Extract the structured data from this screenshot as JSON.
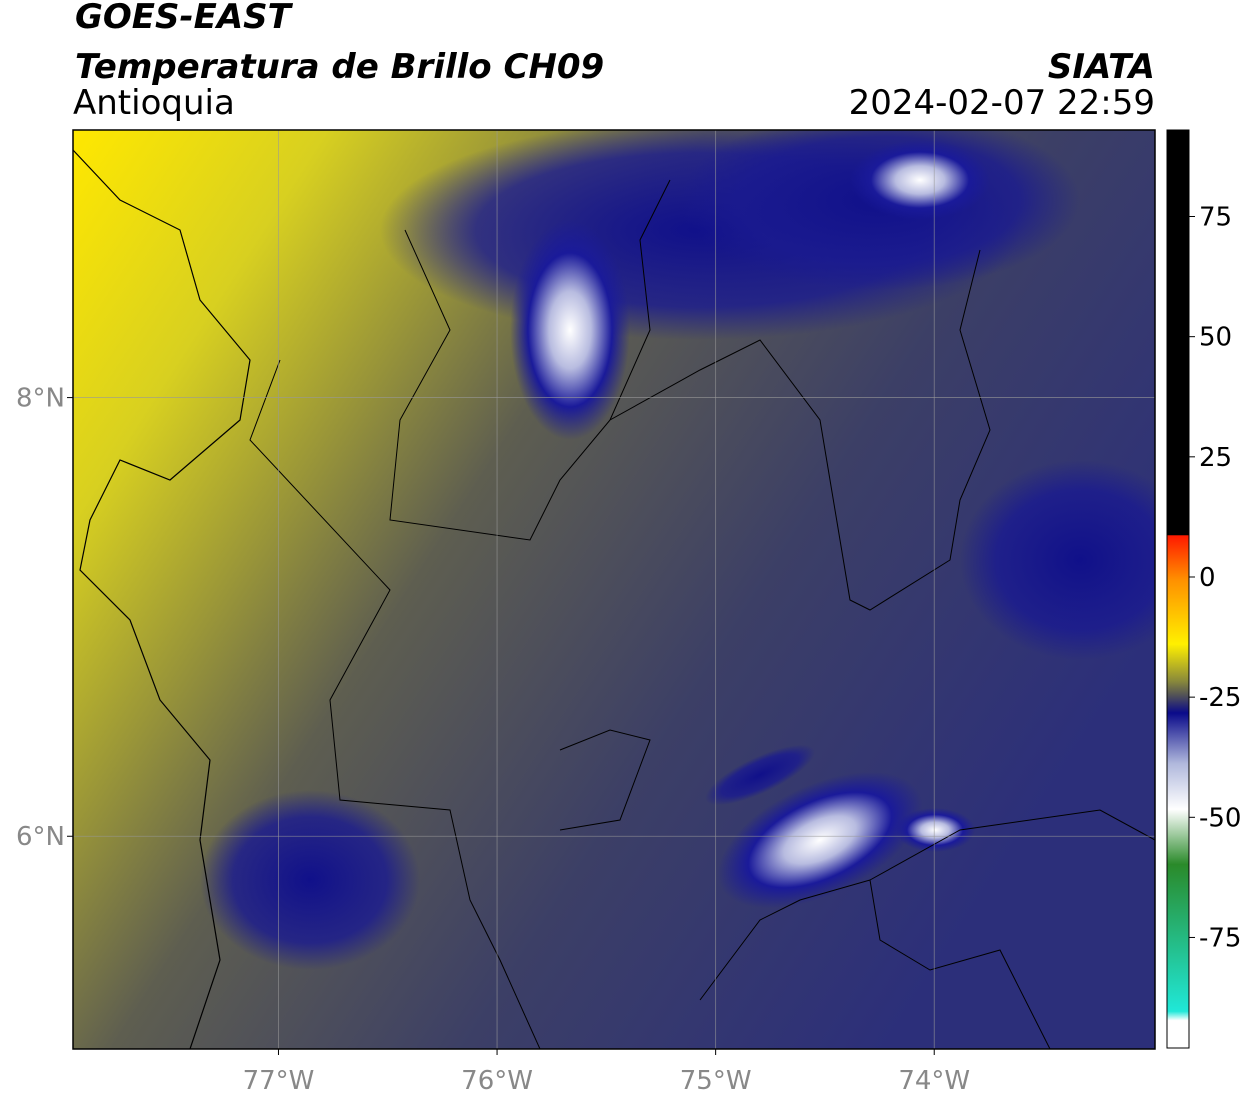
{
  "header": {
    "satellite": "GOES-EAST",
    "title": "Temperatura de Brillo CH09",
    "region": "Antioquia",
    "source": "SIATA",
    "datetime": "2024-02-07 22:59"
  },
  "map": {
    "xlim": [
      -77.94,
      -72.99
    ],
    "ylim": [
      5.03,
      9.22
    ],
    "xticks": [
      {
        "value": -77,
        "label": "77°W"
      },
      {
        "value": -76,
        "label": "76°W"
      },
      {
        "value": -75,
        "label": "75°W"
      },
      {
        "value": -74,
        "label": "74°W"
      }
    ],
    "yticks": [
      {
        "value": 6,
        "label": "6°N"
      },
      {
        "value": 8,
        "label": "8°N"
      }
    ],
    "grid": true
  },
  "colorbar": {
    "lim": [
      -98,
      93
    ],
    "ticks": [
      75,
      50,
      25,
      0,
      -25,
      -50,
      -75
    ]
  }
}
